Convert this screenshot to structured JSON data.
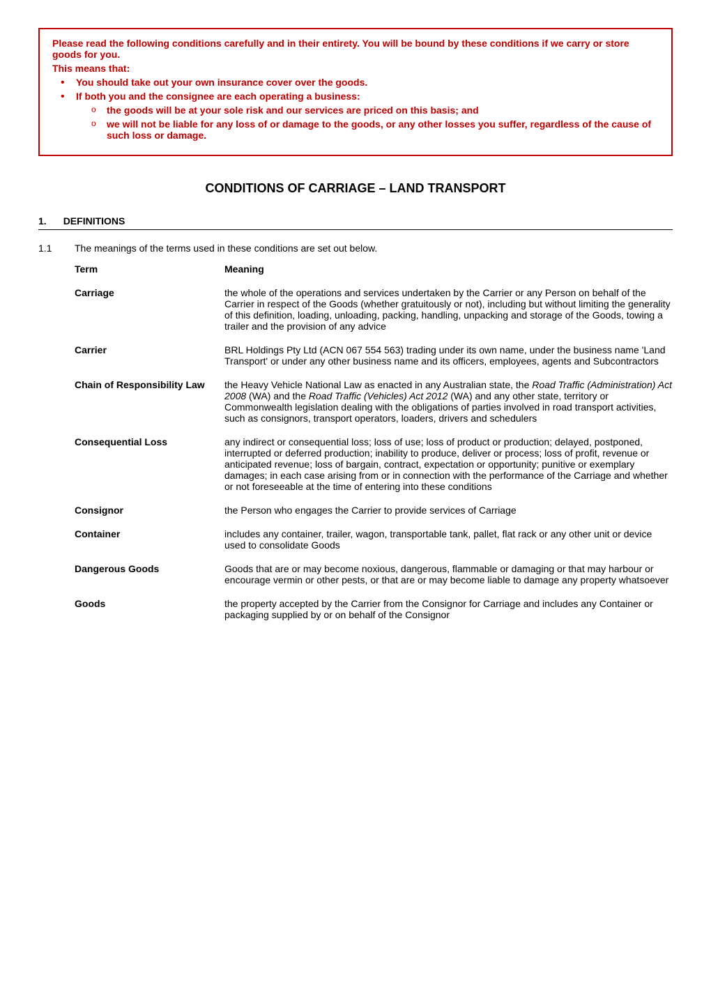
{
  "notice": {
    "intro": "Please read the following conditions carefully and in their entirety. You will be bound by these conditions if we carry or store goods for you.",
    "subhead": "This means that:",
    "bullet1": "You should take out your own insurance cover over the goods.",
    "bullet2": "If both you and the consignee are each operating a business:",
    "sub1": "the goods will be at your sole risk and our services are priced on this basis; and",
    "sub2": "we will not be liable for any loss of or damage to the goods, or any other losses you suffer, regardless of the cause of such loss or damage."
  },
  "title": "CONDITIONS OF CARRIAGE – LAND TRANSPORT",
  "section": {
    "num": "1.",
    "title": "DEFINITIONS"
  },
  "clause": {
    "num": "1.1",
    "text": "The meanings of the terms used in these conditions are set out below."
  },
  "tableHeader": {
    "term": "Term",
    "meaning": "Meaning"
  },
  "defs": {
    "carriage": {
      "term": "Carriage",
      "meaning": "the whole of the operations and services undertaken by the Carrier or any Person on behalf of the Carrier in respect of the Goods (whether gratuitously or not), including but without limiting the generality of this definition, loading, unloading, packing, handling, unpacking and storage of the Goods, towing a trailer and the provision of any advice"
    },
    "carrier": {
      "term": "Carrier",
      "meaning": "BRL Holdings Pty Ltd (ACN 067 554 563) trading under its own name, under the business name 'Land Transport' or under any other business name and its officers, employees, agents and Subcontractors"
    },
    "cor": {
      "term": "Chain of Responsibility Law",
      "meaning_pre": "the Heavy Vehicle National Law as enacted in any Australian state, the ",
      "meaning_ital1": "Road Traffic (Administration) Act 2008",
      "meaning_mid1": " (WA) and the ",
      "meaning_ital2": "Road Traffic (Vehicles) Act 2012",
      "meaning_post": " (WA) and any other state, territory or Commonwealth legislation dealing with the obligations of parties involved in road transport activities, such as consignors, transport operators, loaders, drivers and schedulers"
    },
    "conseq": {
      "term": "Consequential Loss",
      "meaning": "any indirect or consequential loss; loss of use; loss of product or production; delayed, postponed, interrupted or deferred production; inability to produce, deliver or process; loss of profit, revenue or anticipated revenue; loss of bargain, contract, expectation or opportunity; punitive or exemplary damages; in each case arising from or in connection with the performance of the Carriage and whether or not foreseeable at the time of entering into these conditions"
    },
    "consignor": {
      "term": "Consignor",
      "meaning": "the Person who engages the Carrier to provide services of Carriage"
    },
    "container": {
      "term": "Container",
      "meaning": "includes any container, trailer, wagon, transportable tank, pallet, flat rack or any other unit or device used to consolidate Goods"
    },
    "dangerous": {
      "term": "Dangerous Goods",
      "meaning": "Goods that are or may become noxious, dangerous, flammable or damaging or that may harbour or encourage vermin or other pests, or that are or may become liable to damage any property whatsoever"
    },
    "goods": {
      "term": "Goods",
      "meaning": "the property accepted by the Carrier from the Consignor for Carriage and includes any Container or packaging supplied by or on behalf of the Consignor"
    }
  }
}
